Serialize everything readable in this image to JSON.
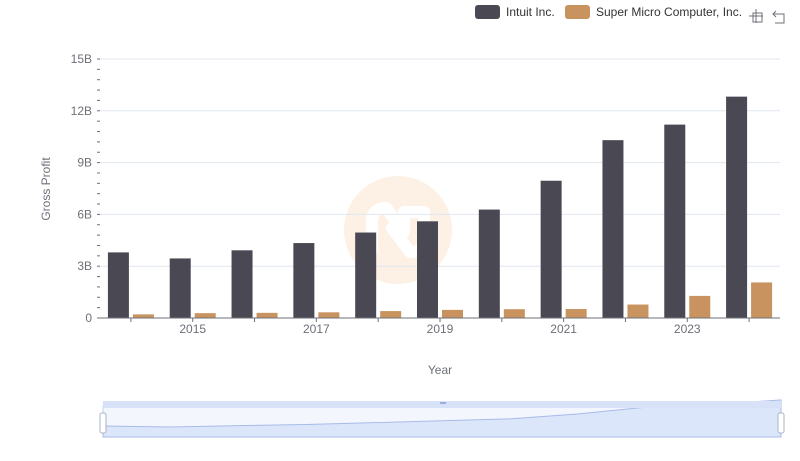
{
  "chart_data": {
    "type": "bar",
    "title": "",
    "xlabel": "Year",
    "ylabel": "Gross Profit",
    "ylim": [
      0,
      15000000000
    ],
    "y_ticks": [
      {
        "value": 0,
        "label": "0"
      },
      {
        "value": 3000000000,
        "label": "3B"
      },
      {
        "value": 6000000000,
        "label": "6B"
      },
      {
        "value": 9000000000,
        "label": "9B"
      },
      {
        "value": 12000000000,
        "label": "12B"
      },
      {
        "value": 15000000000,
        "label": "15B"
      }
    ],
    "categories": [
      "2014",
      "2015",
      "2016",
      "2017",
      "2018",
      "2019",
      "2020",
      "2021",
      "2022",
      "2023",
      "2024"
    ],
    "x_tick_labels": [
      "2015",
      "2017",
      "2019",
      "2021",
      "2023"
    ],
    "grid": true,
    "legend_position": "top-right",
    "series": [
      {
        "name": "Intuit Inc.",
        "color": "#4a4953",
        "values": [
          3800000000,
          3450000000,
          3920000000,
          4340000000,
          4950000000,
          5600000000,
          6280000000,
          7950000000,
          10300000000,
          11200000000,
          12820000000
        ]
      },
      {
        "name": "Super Micro Computer, Inc.",
        "color": "#c8935e",
        "values": [
          210000000,
          280000000,
          300000000,
          330000000,
          400000000,
          470000000,
          510000000,
          520000000,
          780000000,
          1280000000,
          2060000000
        ]
      }
    ]
  },
  "toolbar": {
    "zoom_icon": "zoom-icon",
    "reset_icon": "restore-icon"
  },
  "datazoom": {
    "fill_color": "#dce6fb",
    "border_color": "#c3d0ee",
    "handle_color": "#ffffff"
  }
}
